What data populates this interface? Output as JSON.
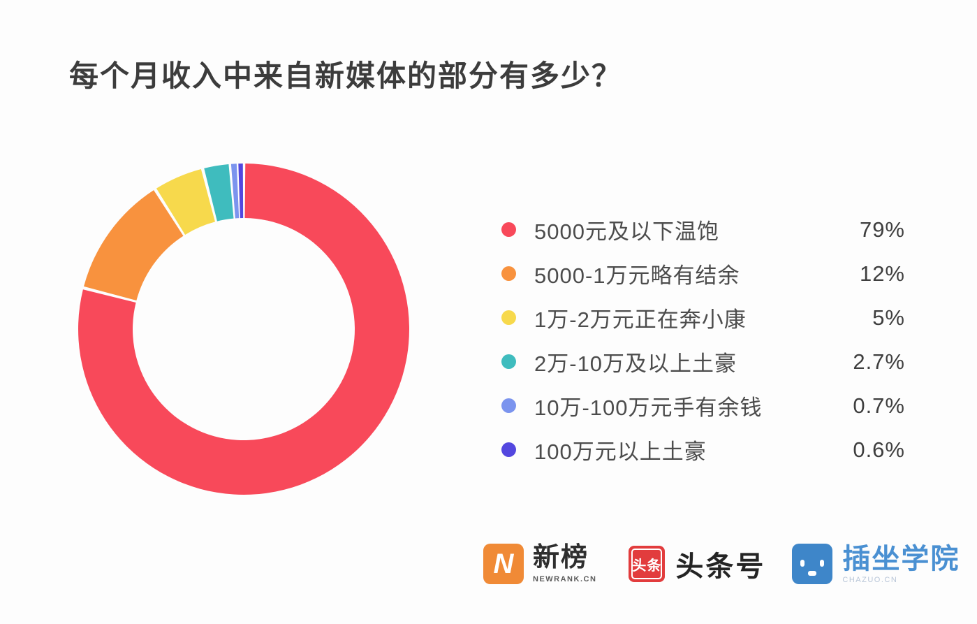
{
  "title": "每个月收入中来自新媒体的部分有多少？",
  "chart_data": {
    "type": "pie",
    "subtype": "donut",
    "title": "每个月收入中来自新媒体的部分有多少？",
    "categories": [
      "5000元及以下温饱",
      "5000-1万元略有结余",
      "1万-2万元正在奔小康",
      "2万-10万及以上土豪",
      "10万-100万元手有余钱",
      "100万元以上土豪"
    ],
    "values": [
      79,
      12,
      5,
      2.7,
      0.7,
      0.6
    ],
    "unit": "%",
    "colors": [
      "#F8495A",
      "#F8923E",
      "#F7D94C",
      "#3FBCBE",
      "#7B94EE",
      "#5347DF"
    ],
    "start_angle_deg": 0,
    "direction": "clockwise",
    "donut_hole_ratio": 0.67,
    "slice_gap": true,
    "legend_position": "right",
    "labels_on_chart": false
  },
  "legend": {
    "items": [
      {
        "label": "5000元及以下温饱",
        "value": "79%",
        "color": "#F8495A"
      },
      {
        "label": "5000-1万元略有结余",
        "value": "12%",
        "color": "#F8923E"
      },
      {
        "label": "1万-2万元正在奔小康",
        "value": "5%",
        "color": "#F7D94C"
      },
      {
        "label": "2万-10万及以上土豪",
        "value": "2.7%",
        "color": "#3FBCBE"
      },
      {
        "label": "10万-100万元手有余钱",
        "value": "0.7%",
        "color": "#7B94EE"
      },
      {
        "label": "100万元以上土豪",
        "value": "0.6%",
        "color": "#5347DF"
      }
    ]
  },
  "footer": {
    "newrank": {
      "icon_letter": "N",
      "name": "新榜",
      "subtext": "NEWRANK.CN",
      "icon_color": "#F08A36"
    },
    "toutiao": {
      "icon_text": "头条",
      "name": "头条号",
      "icon_color": "#E23C3D"
    },
    "chazuo": {
      "name": "插坐学院",
      "subtext": "CHAZUO.CN",
      "icon_color": "#3E86C9",
      "text_color": "#4A90D2"
    }
  }
}
